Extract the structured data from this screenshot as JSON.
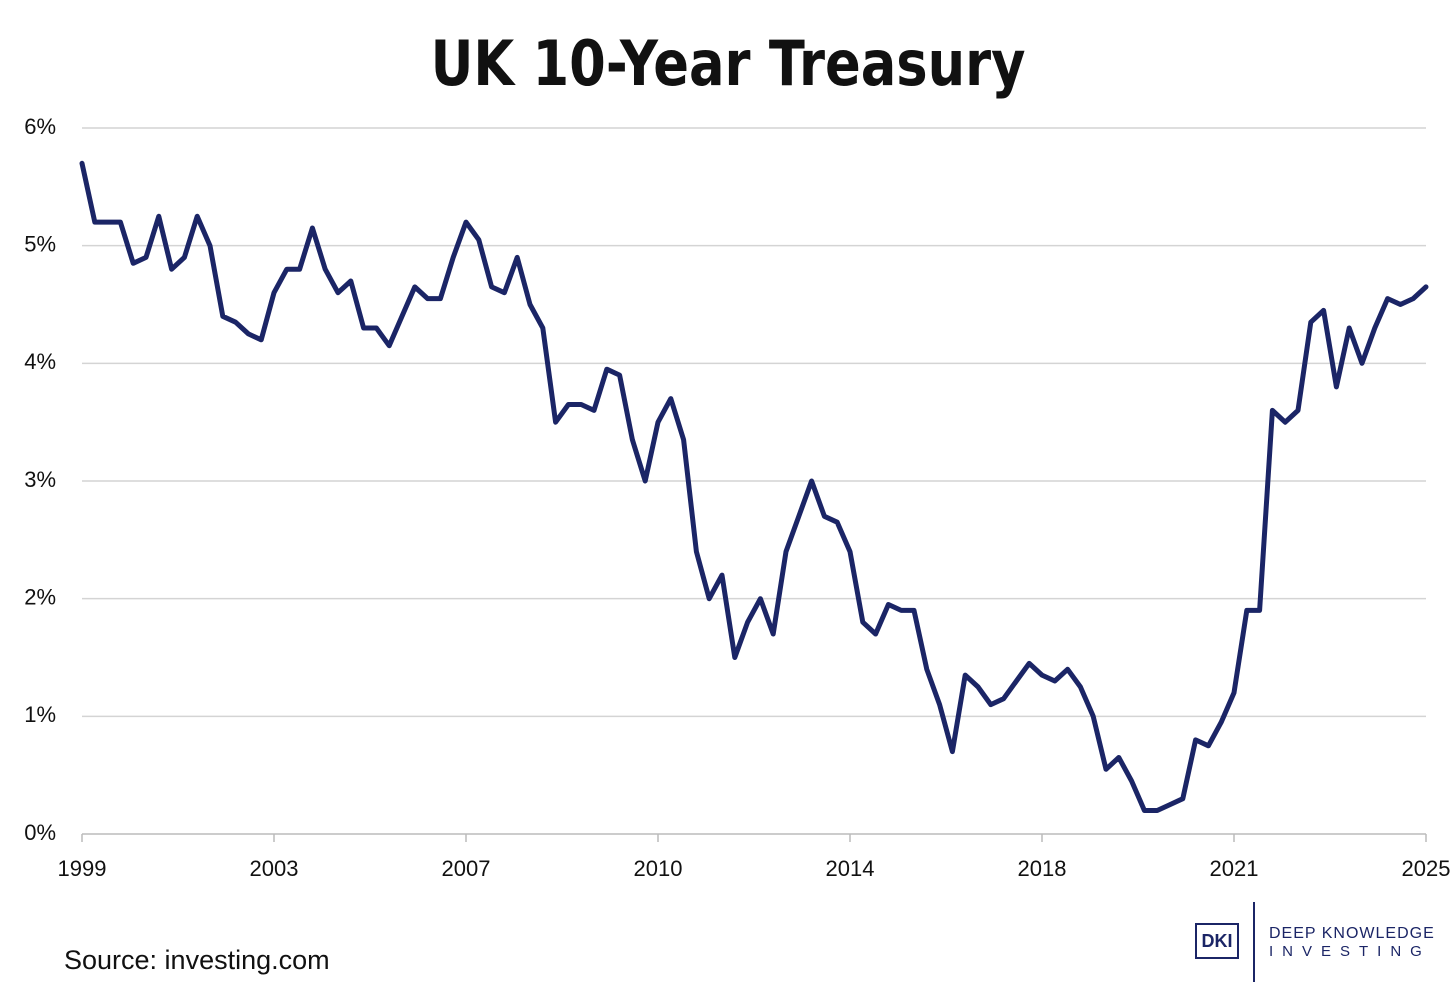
{
  "chart_data": {
    "type": "line",
    "title": "UK 10-Year Treasury",
    "source": "Source: investing.com",
    "logo": {
      "mark": "DKI",
      "line1": "DEEP KNOWLEDGE",
      "line2": "INVESTING"
    },
    "categories": [
      "1999",
      null,
      null,
      null,
      null,
      null,
      null,
      null,
      null,
      null,
      null,
      null,
      null,
      null,
      null,
      "2003",
      null,
      null,
      null,
      null,
      null,
      null,
      null,
      null,
      null,
      null,
      null,
      null,
      null,
      null,
      "2007",
      null,
      null,
      null,
      null,
      null,
      null,
      null,
      null,
      null,
      null,
      null,
      null,
      null,
      null,
      "2010",
      null,
      null,
      null,
      null,
      null,
      null,
      null,
      null,
      null,
      null,
      null,
      null,
      null,
      null,
      "2014",
      null,
      null,
      null,
      null,
      null,
      null,
      null,
      null,
      null,
      null,
      null,
      null,
      null,
      null,
      "2018",
      null,
      null,
      null,
      null,
      null,
      null,
      null,
      null,
      null,
      null,
      null,
      null,
      null,
      null,
      "2021",
      null,
      null,
      null,
      null,
      null,
      null,
      null,
      null,
      null,
      null,
      null,
      null,
      null,
      null,
      "2025"
    ],
    "series": [
      {
        "name": "UK 10-Year Treasury",
        "color": "#1b2566",
        "values": [
          5.7,
          5.2,
          5.2,
          5.2,
          4.85,
          4.9,
          5.25,
          4.8,
          4.9,
          5.25,
          5.0,
          4.4,
          4.35,
          4.25,
          4.2,
          4.6,
          4.8,
          4.8,
          5.15,
          4.8,
          4.6,
          4.7,
          4.3,
          4.3,
          4.15,
          4.4,
          4.65,
          4.55,
          4.55,
          4.9,
          5.2,
          5.05,
          4.65,
          4.6,
          4.9,
          4.5,
          4.3,
          3.5,
          3.65,
          3.65,
          3.6,
          3.95,
          3.9,
          3.35,
          3.0,
          3.5,
          3.7,
          3.35,
          2.4,
          2.0,
          2.2,
          1.5,
          1.8,
          2.0,
          1.7,
          2.4,
          2.7,
          3.0,
          2.7,
          2.65,
          2.4,
          1.8,
          1.7,
          1.95,
          1.9,
          1.9,
          1.4,
          1.1,
          0.7,
          1.35,
          1.25,
          1.1,
          1.15,
          1.3,
          1.45,
          1.35,
          1.3,
          1.4,
          1.25,
          1.0,
          0.55,
          0.65,
          0.45,
          0.2,
          0.2,
          0.25,
          0.3,
          0.8,
          0.75,
          0.95,
          1.2,
          1.9,
          1.9,
          3.6,
          3.5,
          3.6,
          4.35,
          4.45,
          3.8,
          4.3,
          4.0,
          4.3,
          4.55,
          4.5,
          4.55,
          4.65
        ]
      }
    ],
    "ylim": [
      0,
      6
    ],
    "yticks": [
      {
        "value": 0,
        "label": "0%"
      },
      {
        "value": 1,
        "label": "1%"
      },
      {
        "value": 2,
        "label": "2%"
      },
      {
        "value": 3,
        "label": "3%"
      },
      {
        "value": 4,
        "label": "4%"
      },
      {
        "value": 5,
        "label": "5%"
      },
      {
        "value": 6,
        "label": "6%"
      }
    ],
    "grid": true
  }
}
